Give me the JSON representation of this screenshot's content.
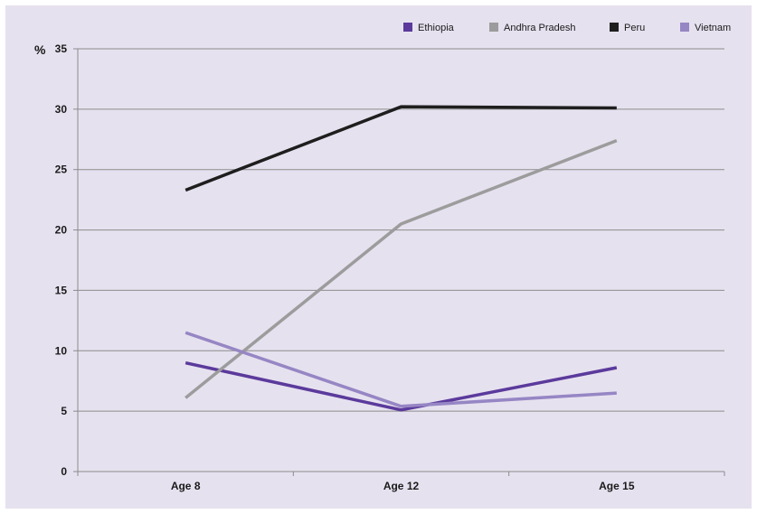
{
  "chart_data": {
    "type": "line",
    "unit_label": "%",
    "categories": [
      "Age 8",
      "Age 12",
      "Age 15"
    ],
    "ylim": [
      0,
      35
    ],
    "yticks": [
      0,
      5,
      10,
      15,
      20,
      25,
      30,
      35
    ],
    "grid": true,
    "legend_position": "top-right",
    "series": [
      {
        "name": "Ethiopia",
        "color": "#5b3a9c",
        "values": [
          9.0,
          5.1,
          8.6
        ]
      },
      {
        "name": "Andhra Pradesh",
        "color": "#9c9c9c",
        "values": [
          6.1,
          20.5,
          27.4
        ]
      },
      {
        "name": "Peru",
        "color": "#1e1e1e",
        "values": [
          23.3,
          30.2,
          30.1
        ]
      },
      {
        "name": "Vietnam",
        "color": "#9686c4",
        "values": [
          11.5,
          5.4,
          6.5
        ]
      }
    ]
  }
}
